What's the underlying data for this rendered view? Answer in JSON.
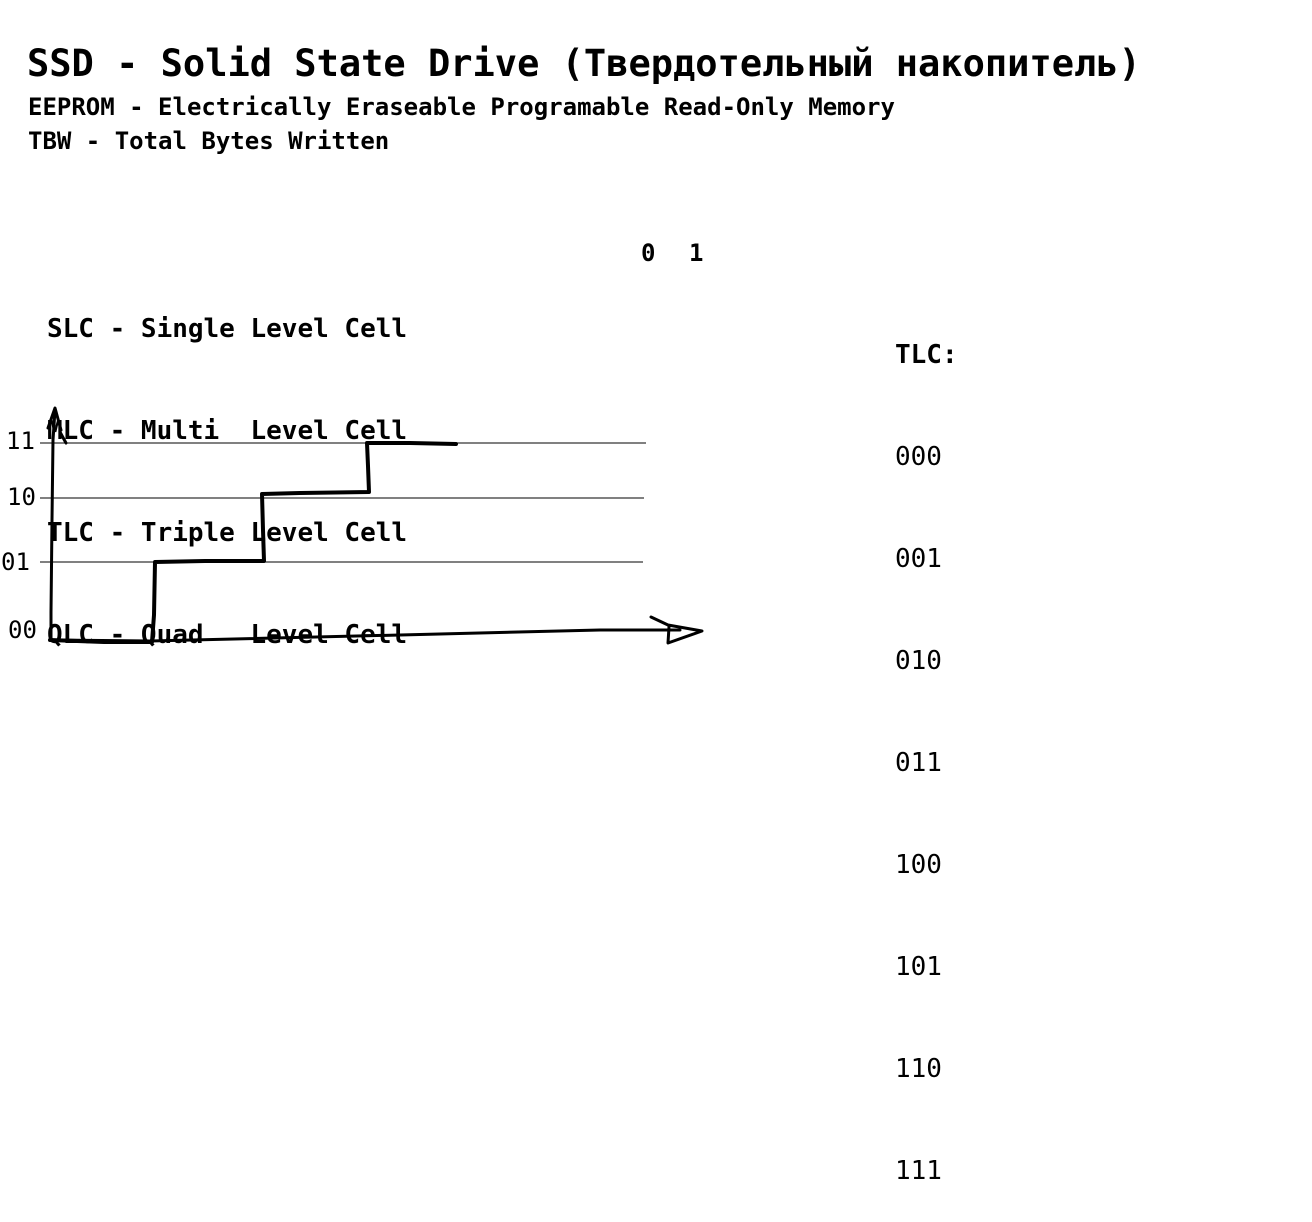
{
  "title": "SSD - Solid State Drive (Твердотельный накопитель)",
  "definitions": [
    "EEPROM - Electrically Eraseable Programable Read-Only Memory",
    "TBW - Total Bytes Written"
  ],
  "cell_types": [
    "SLC - Single Level Cell",
    "MLC - Multi  Level Cell",
    "TLC - Triple Level Cell",
    "QLC - Quad   Level Cell"
  ],
  "bits": [
    "0",
    "1"
  ],
  "tlc": {
    "title": "TLC:",
    "codes": [
      "000",
      "001",
      "010",
      "011",
      "100",
      "101",
      "110",
      "111"
    ]
  },
  "diagram": {
    "levels": [
      "00",
      "01",
      "10",
      "11"
    ]
  }
}
